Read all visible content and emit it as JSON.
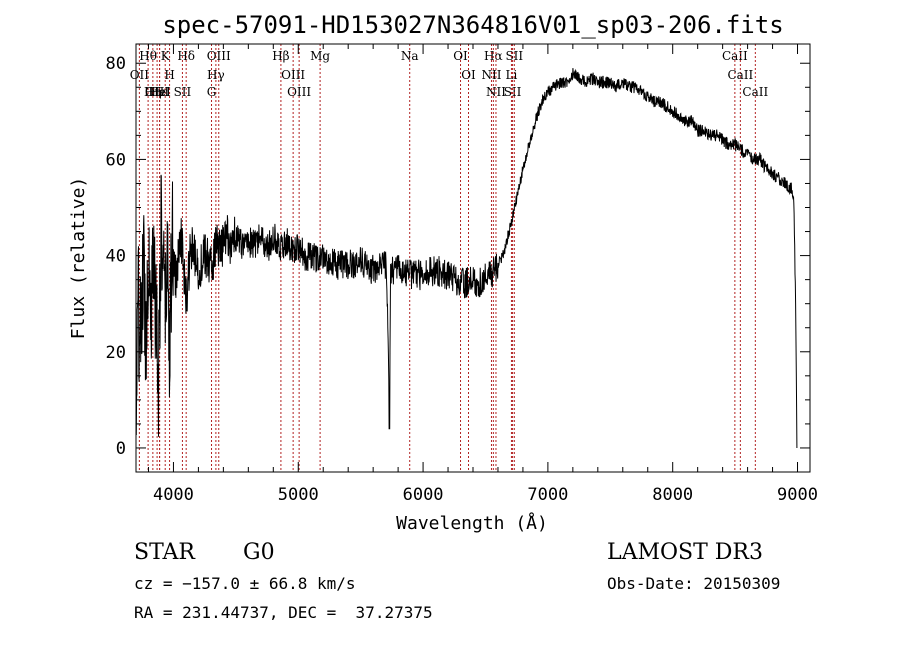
{
  "chart_data": {
    "type": "line",
    "title": "spec-57091-HD153027N364816V01_sp03-206.fits",
    "xlabel": "Wavelength (Å)",
    "ylabel": "Flux (relative)",
    "xlim": [
      3700,
      9100
    ],
    "ylim": [
      -5,
      84
    ],
    "xticks": [
      4000,
      5000,
      6000,
      7000,
      8000,
      9000
    ],
    "yticks": [
      0,
      20,
      40,
      60,
      80
    ],
    "series": [
      {
        "name": "flux",
        "x": [
          3700,
          3720,
          3740,
          3760,
          3780,
          3800,
          3820,
          3840,
          3860,
          3880,
          3900,
          3920,
          3933,
          3950,
          3968,
          3990,
          4020,
          4060,
          4101,
          4140,
          4200,
          4250,
          4300,
          4340,
          4380,
          4420,
          4460,
          4500,
          4550,
          4600,
          4650,
          4700,
          4750,
          4800,
          4861,
          4900,
          4950,
          5000,
          5050,
          5100,
          5150,
          5200,
          5300,
          5400,
          5500,
          5600,
          5700,
          5720,
          5730,
          5740,
          5760,
          5800,
          5900,
          6000,
          6100,
          6200,
          6300,
          6400,
          6450,
          6500,
          6550,
          6563,
          6600,
          6650,
          6700,
          6750,
          6800,
          6850,
          6900,
          6950,
          7000,
          7050,
          7100,
          7150,
          7200,
          7250,
          7300,
          7350,
          7400,
          7450,
          7500,
          7550,
          7600,
          7650,
          7700,
          7750,
          7800,
          7850,
          7900,
          7950,
          8000,
          8050,
          8100,
          8150,
          8200,
          8250,
          8300,
          8350,
          8400,
          8450,
          8500,
          8550,
          8600,
          8650,
          8700,
          8750,
          8800,
          8850,
          8900,
          8950,
          8970,
          8985,
          8995
        ],
        "y": [
          8,
          30,
          20,
          40,
          22,
          45,
          28,
          38,
          30,
          15,
          45,
          35,
          25,
          40,
          22,
          42,
          35,
          45,
          30,
          42,
          37,
          40,
          38,
          42,
          40,
          45,
          42,
          44,
          42,
          43,
          42,
          44,
          41,
          44,
          42,
          43,
          41,
          42,
          40,
          40,
          39,
          40,
          38,
          38,
          39,
          37,
          38,
          25,
          8,
          36,
          37,
          37,
          36,
          36,
          37,
          36,
          34,
          35,
          34,
          36,
          36,
          37,
          38,
          41,
          46,
          52,
          58,
          63,
          68,
          72,
          74,
          75,
          76,
          76,
          78,
          77,
          76,
          77,
          76,
          76,
          76,
          75,
          76,
          75,
          75,
          74,
          73,
          72,
          72,
          71,
          70,
          69,
          68,
          68,
          66,
          66,
          65,
          65,
          64,
          63,
          63,
          62,
          61,
          60,
          60,
          58,
          57,
          56,
          55,
          54,
          52,
          30,
          0
        ]
      }
    ],
    "lines": [
      {
        "label": "Hθ",
        "wave": 3797
      },
      {
        "label": "OII",
        "wave": 3727
      },
      {
        "label": "OIII",
        "wave": 3869
      },
      {
        "label": "K",
        "wave": 3934
      },
      {
        "label": "H",
        "wave": 3969
      },
      {
        "label": "Hε",
        "wave": 3889
      },
      {
        "label": "HeI",
        "wave": 3889
      },
      {
        "label": "Hη",
        "wave": 3835
      },
      {
        "label": "Hδ",
        "wave": 4102
      },
      {
        "label": "SII",
        "wave": 4072
      },
      {
        "label": "OIII",
        "wave": 4363
      },
      {
        "label": "Hγ",
        "wave": 4340
      },
      {
        "label": "G",
        "wave": 4305
      },
      {
        "label": "Hβ",
        "wave": 4861
      },
      {
        "label": "OIII",
        "wave": 4959
      },
      {
        "label": "OIII",
        "wave": 5007
      },
      {
        "label": "Mg",
        "wave": 5175
      },
      {
        "label": "Na",
        "wave": 5893
      },
      {
        "label": "OI",
        "wave": 6300
      },
      {
        "label": "OI",
        "wave": 6364
      },
      {
        "label": "Hα",
        "wave": 6563
      },
      {
        "label": "NII",
        "wave": 6548
      },
      {
        "label": "NII",
        "wave": 6584
      },
      {
        "label": "SII",
        "wave": 6717
      },
      {
        "label": "SII",
        "wave": 6731
      },
      {
        "label": "Li",
        "wave": 6708
      },
      {
        "label": "CaII",
        "wave": 8498
      },
      {
        "label": "CaII",
        "wave": 8542
      },
      {
        "label": "CaII",
        "wave": 8662
      }
    ],
    "line_color": "#b22222"
  },
  "info": {
    "object_class": "STAR",
    "subclass": "G0",
    "survey": "LAMOST DR3",
    "redshift_line": "cz = −157.0 ± 66.8 km/s",
    "obs_date_line": "Obs-Date: 20150309",
    "coords_line": "RA = 231.44737, DEC =  37.27375"
  }
}
